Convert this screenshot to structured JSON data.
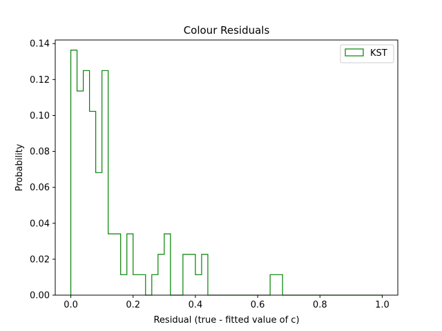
{
  "chart_data": {
    "type": "histogram-step",
    "title": "Colour Residuals",
    "xlabel": "Residual (true - fitted value of c)",
    "ylabel": "Probability",
    "xlim": [
      -0.05,
      1.05
    ],
    "ylim": [
      0.0,
      0.142
    ],
    "xticks": [
      0.0,
      0.2,
      0.4,
      0.6,
      0.8,
      1.0
    ],
    "xtick_labels": [
      "0.0",
      "0.2",
      "0.4",
      "0.6",
      "0.8",
      "1.0"
    ],
    "yticks": [
      0.0,
      0.02,
      0.04,
      0.06,
      0.08,
      0.1,
      0.12,
      0.14
    ],
    "ytick_labels": [
      "0.00",
      "0.02",
      "0.04",
      "0.06",
      "0.08",
      "0.10",
      "0.12",
      "0.14"
    ],
    "grid": false,
    "legend_position": "top-right",
    "bin_width": 0.02,
    "series": [
      {
        "name": "KST",
        "color": "#008000",
        "bin_edges": [
          0.0,
          0.02,
          0.04,
          0.06,
          0.08,
          0.1,
          0.12,
          0.14,
          0.16,
          0.18,
          0.2,
          0.22,
          0.24,
          0.26,
          0.28,
          0.3,
          0.32,
          0.34,
          0.36,
          0.38,
          0.4,
          0.42,
          0.44,
          0.46,
          0.48,
          0.5,
          0.52,
          0.54,
          0.56,
          0.58,
          0.6,
          0.62,
          0.64,
          0.66,
          0.68,
          0.7,
          0.72,
          0.74,
          0.76,
          0.78,
          0.8,
          0.82,
          0.84,
          0.86,
          0.88,
          0.9,
          0.92,
          0.94,
          0.96,
          0.98,
          1.0
        ],
        "values": [
          0.1364,
          0.1136,
          0.125,
          0.1023,
          0.0682,
          0.125,
          0.0341,
          0.0341,
          0.0114,
          0.0341,
          0.0114,
          0.0114,
          0.0,
          0.0114,
          0.0227,
          0.0341,
          0.0,
          0.0,
          0.0227,
          0.0227,
          0.0114,
          0.0227,
          0.0,
          0.0,
          0.0,
          0.0,
          0.0,
          0.0,
          0.0,
          0.0,
          0.0,
          0.0,
          0.0114,
          0.0114,
          0.0,
          0.0,
          0.0,
          0.0,
          0.0,
          0.0,
          0.0,
          0.0,
          0.0,
          0.0,
          0.0,
          0.0,
          0.0,
          0.0,
          0.0,
          0.0
        ]
      }
    ]
  }
}
